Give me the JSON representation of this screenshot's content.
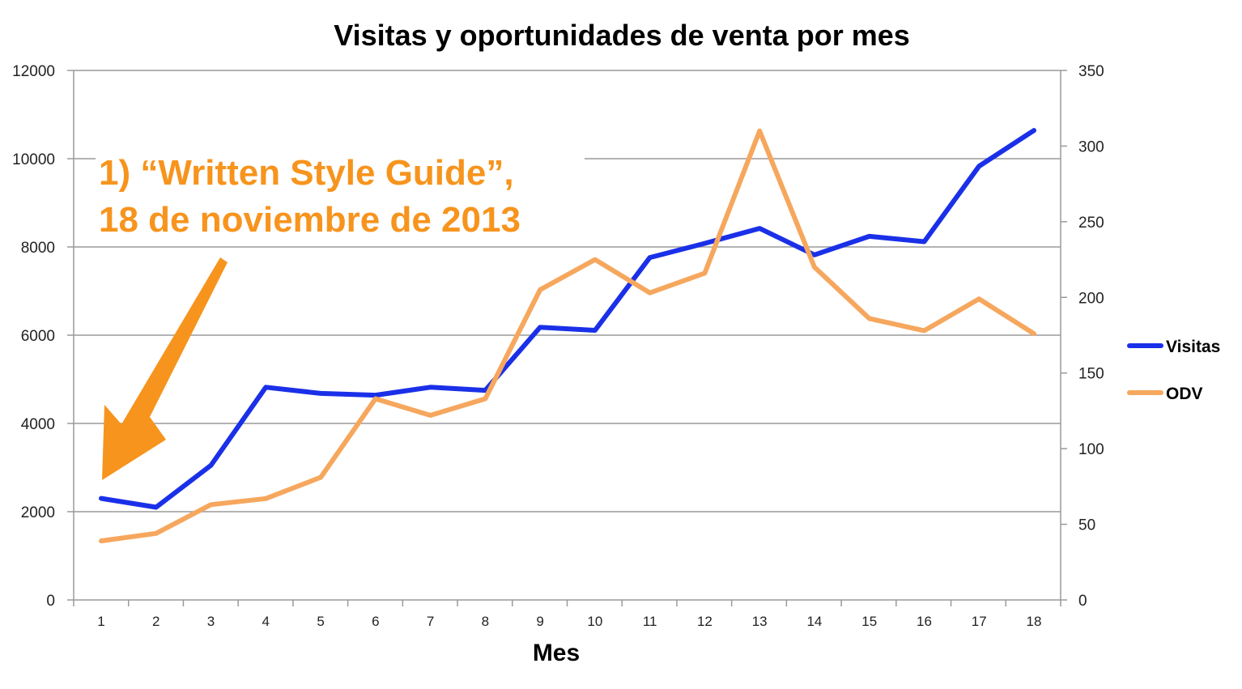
{
  "chart_data": {
    "type": "line",
    "title": "Visitas y oportunidades de venta por mes",
    "xlabel": "Mes",
    "ylabel_left": "",
    "ylabel_right": "",
    "categories": [
      "1",
      "2",
      "3",
      "4",
      "5",
      "6",
      "7",
      "8",
      "9",
      "10",
      "11",
      "12",
      "13",
      "14",
      "15",
      "16",
      "17",
      "18"
    ],
    "ylim_left": [
      0,
      12000
    ],
    "yticks_left": [
      0,
      2000,
      4000,
      6000,
      8000,
      10000,
      12000
    ],
    "ylim_right": [
      0,
      350
    ],
    "yticks_right": [
      0,
      50,
      100,
      150,
      200,
      250,
      300,
      350
    ],
    "grid": true,
    "legend_position": "right",
    "series": [
      {
        "name": "Visitas",
        "axis": "left",
        "color": "#1a30e8",
        "values": [
          2300,
          2100,
          3050,
          4820,
          4680,
          4640,
          4820,
          4750,
          6180,
          6110,
          7760,
          8080,
          8420,
          7820,
          8240,
          8120,
          9830,
          10640
        ]
      },
      {
        "name": "ODV",
        "axis": "right",
        "color": "#f6a75e",
        "values": [
          39,
          44,
          63,
          67,
          81,
          133,
          122,
          133,
          205,
          225,
          203,
          216,
          310,
          220,
          186,
          178,
          199,
          176
        ]
      }
    ],
    "annotation": {
      "lines": [
        "1) “Written Style Guide”,",
        "18 de noviembre de 2013"
      ],
      "color": "#f7941d",
      "target_category": "1"
    }
  }
}
